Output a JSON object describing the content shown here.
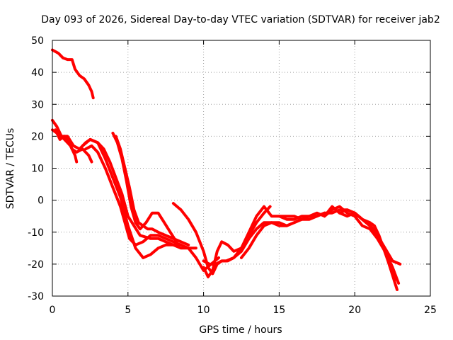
{
  "chart_data": {
    "type": "line",
    "title": "Day 093 of 2026, Sidereal Day-to-day VTEC variation (SDTVAR) for receiver jab2",
    "xlabel": "GPS time / hours",
    "ylabel": "SDTVAR / TECUs",
    "xlim": [
      0,
      25
    ],
    "ylim": [
      -30,
      50
    ],
    "xticks": [
      0,
      5,
      10,
      15,
      20,
      25
    ],
    "yticks": [
      -30,
      -20,
      -10,
      0,
      10,
      20,
      30,
      40,
      50
    ],
    "grid": true,
    "color": "#ff0000",
    "series": [
      {
        "name": "s1",
        "x": [
          0.0,
          0.4,
          0.7,
          1.0,
          1.3,
          1.5,
          1.8,
          2.1,
          2.4,
          2.6,
          2.7
        ],
        "y": [
          47,
          46,
          44.5,
          44,
          44,
          41,
          39,
          38,
          36,
          34,
          32
        ]
      },
      {
        "name": "s2",
        "x": [
          0.0,
          0.3,
          0.6,
          1.0,
          1.2,
          1.4,
          1.5,
          1.6
        ],
        "y": [
          25,
          23,
          20,
          18,
          17,
          15,
          14,
          12
        ]
      },
      {
        "name": "s3",
        "x": [
          0.0,
          0.3,
          0.5,
          0.8,
          1.1,
          1.3,
          1.6,
          2.0,
          2.4,
          2.6
        ],
        "y": [
          22,
          21,
          19,
          20,
          18,
          16,
          15,
          16,
          14,
          12
        ]
      },
      {
        "name": "s4",
        "x": [
          0.2,
          0.6,
          1.0,
          1.4,
          1.8,
          2.2,
          2.5,
          3.0,
          3.4,
          3.8,
          4.2,
          4.6,
          5.0,
          5.4,
          5.8,
          6.5,
          7.0,
          7.5,
          8.0,
          8.5,
          9.0,
          9.5
        ],
        "y": [
          22,
          20,
          20,
          17,
          16,
          18,
          19,
          18,
          16,
          12,
          7,
          2,
          -5,
          -8,
          -11,
          -12,
          -12,
          -13,
          -14,
          -14,
          -15,
          -15
        ]
      },
      {
        "name": "s5",
        "x": [
          2.0,
          2.5,
          3.0,
          3.5,
          4.0,
          4.5,
          5.0,
          5.5,
          6.0,
          6.5,
          7.0,
          7.5,
          8.0,
          8.5,
          9.0,
          9.5,
          10.0,
          10.5,
          11.0
        ],
        "y": [
          17,
          19,
          18,
          13,
          7,
          1,
          -8,
          -15,
          -18,
          -17,
          -15,
          -14,
          -14,
          -15,
          -15,
          -18,
          -22,
          -20,
          -18
        ]
      },
      {
        "name": "s6",
        "x": [
          2.2,
          2.6,
          3.0,
          3.5,
          4.0,
          4.5,
          4.8,
          5.1,
          5.5,
          6.0,
          6.5,
          7.0,
          7.5,
          8.0,
          8.5
        ],
        "y": [
          16,
          17,
          15,
          10,
          4,
          -2,
          -7,
          -12,
          -14,
          -13,
          -11,
          -11,
          -12,
          -13,
          -14
        ]
      },
      {
        "name": "s7",
        "x": [
          4.0,
          4.3,
          4.6,
          4.9,
          5.2,
          5.5,
          5.8,
          6.2,
          6.6,
          7.0,
          7.4,
          7.8,
          8.2
        ],
        "y": [
          21,
          18,
          13,
          6,
          -2,
          -7,
          -9,
          -7,
          -4,
          -4,
          -7,
          -10,
          -13
        ]
      },
      {
        "name": "s8",
        "x": [
          4.2,
          4.5,
          4.8,
          5.1,
          5.4,
          5.7,
          6.0,
          6.3,
          6.6,
          7.0,
          7.5,
          8.0,
          8.5,
          9.0
        ],
        "y": [
          20,
          16,
          10,
          4,
          -3,
          -7,
          -8,
          -9,
          -9,
          -10,
          -11,
          -12,
          -13,
          -14
        ]
      },
      {
        "name": "s9",
        "x": [
          8.0,
          8.5,
          9.0,
          9.5,
          10.0,
          10.3,
          10.6,
          10.9,
          11.2,
          11.5,
          12.0,
          12.5,
          13.0,
          13.5,
          14.0,
          14.5,
          15.0,
          15.5,
          16.0,
          16.5,
          17.0,
          17.5,
          18.0
        ],
        "y": [
          -1,
          -3,
          -6,
          -10,
          -16,
          -21,
          -23,
          -20,
          -19,
          -19,
          -18,
          -16,
          -12,
          -9,
          -7,
          -7,
          -8,
          -8,
          -7,
          -6,
          -6,
          -5,
          -4
        ]
      },
      {
        "name": "s10",
        "x": [
          10.0,
          10.4,
          10.8,
          11.2,
          11.6,
          12.0,
          12.5,
          13.0,
          13.5,
          14.0,
          14.5,
          15.0,
          15.5,
          16.0,
          16.5,
          17.0
        ],
        "y": [
          -19,
          -20,
          -20,
          -19,
          -19,
          -18,
          -15,
          -10,
          -5,
          -2,
          -5,
          -5,
          -6,
          -6,
          -5,
          -5
        ]
      },
      {
        "name": "s11",
        "x": [
          10.0,
          10.3,
          10.6,
          10.9,
          11.2,
          11.6,
          12.0,
          12.5,
          13.0,
          13.5,
          14.0,
          14.4
        ],
        "y": [
          -21,
          -24,
          -22,
          -16,
          -13,
          -14,
          -16,
          -15,
          -11,
          -7,
          -4,
          -2
        ]
      },
      {
        "name": "s12",
        "x": [
          12.5,
          13.0,
          13.5,
          14.0,
          14.5,
          15.0,
          15.5,
          16.0,
          16.5,
          17.0,
          17.5,
          18.0,
          18.5,
          19.0,
          19.5,
          20.0,
          20.5,
          21.0,
          21.5,
          22.0,
          22.4,
          22.8
        ],
        "y": [
          -18,
          -15,
          -11,
          -8,
          -7,
          -7,
          -8,
          -7,
          -6,
          -5,
          -5,
          -4,
          -4,
          -3,
          -3,
          -4,
          -6,
          -8,
          -10,
          -16,
          -22,
          -28
        ]
      },
      {
        "name": "s13",
        "x": [
          15.0,
          15.5,
          16.0,
          16.5,
          17.0,
          17.5,
          18.0,
          18.5,
          19.0,
          19.5,
          20.0,
          20.5,
          21.0,
          21.5,
          22.0,
          22.5,
          22.9
        ],
        "y": [
          -5,
          -5,
          -5,
          -6,
          -5,
          -4,
          -5,
          -3,
          -2,
          -4,
          -5,
          -8,
          -9,
          -12,
          -16,
          -21,
          -26
        ]
      },
      {
        "name": "s14",
        "x": [
          18.0,
          18.5,
          19.0,
          19.5,
          20.0,
          20.5,
          21.0,
          21.5,
          22.0,
          22.5,
          23.0
        ],
        "y": [
          -5,
          -2,
          -4,
          -5,
          -4,
          -6,
          -8,
          -11,
          -15,
          -19,
          -20
        ]
      },
      {
        "name": "s15",
        "x": [
          19.0,
          19.5,
          20.0,
          20.5,
          21.0,
          21.3,
          21.6,
          21.9,
          22.2,
          22.5,
          22.8
        ],
        "y": [
          -4,
          -3,
          -4,
          -6,
          -7,
          -8,
          -11,
          -15,
          -19,
          -23,
          -25
        ]
      }
    ]
  }
}
